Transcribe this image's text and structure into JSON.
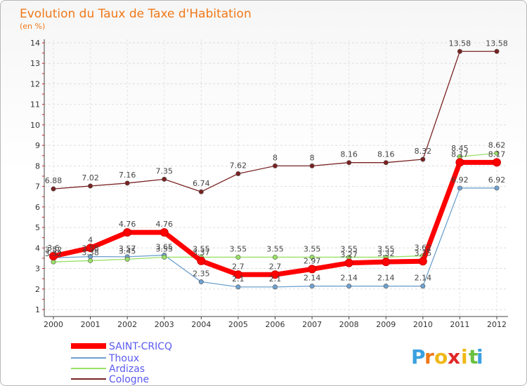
{
  "chart_data": {
    "type": "line",
    "title": "Evolution du Taux de Taxe d'Habitation",
    "subtitle": "(en %)",
    "x": [
      "2000",
      "2001",
      "2002",
      "2003",
      "2004",
      "2005",
      "2006",
      "2007",
      "2008",
      "2009",
      "2010",
      "2011",
      "2012"
    ],
    "ylim": [
      1,
      14
    ],
    "yticks": [
      1,
      2,
      3,
      4,
      5,
      6,
      7,
      8,
      9,
      10,
      11,
      12,
      13,
      14
    ],
    "series": [
      {
        "name": "SAINT-CRICQ",
        "color": "#ff0000",
        "width": 7,
        "values": [
          3.6,
          4,
          4.76,
          4.76,
          3.37,
          2.7,
          2.7,
          2.97,
          3.27,
          3.32,
          3.35,
          8.17,
          8.17
        ]
      },
      {
        "name": "Thoux",
        "color": "#6fa1cf",
        "width": 1.3,
        "values": [
          3.52,
          3.58,
          3.57,
          3.65,
          2.35,
          2.1,
          2.1,
          2.14,
          2.14,
          2.14,
          2.14,
          6.92,
          6.92
        ]
      },
      {
        "name": "Ardizas",
        "color": "#99e066",
        "width": 1.3,
        "values": [
          3.32,
          3.38,
          3.45,
          3.55,
          3.55,
          3.55,
          3.55,
          3.55,
          3.55,
          3.55,
          3.62,
          8.45,
          8.62
        ]
      },
      {
        "name": "Cologne",
        "color": "#7a2222",
        "width": 1.3,
        "values": [
          6.88,
          7.02,
          7.16,
          7.35,
          6.74,
          7.62,
          8,
          8,
          8.16,
          8.16,
          8.32,
          13.58,
          13.58
        ]
      }
    ]
  },
  "brand": {
    "text": "Proxiti",
    "letters": [
      "P",
      "r",
      "o",
      "x",
      "i",
      "t",
      "i"
    ],
    "colors": [
      "#3aa0e0",
      "#f07818",
      "#f0b818",
      "#e02828",
      "#f0b818",
      "#68c040",
      "#3aa0e0"
    ]
  }
}
